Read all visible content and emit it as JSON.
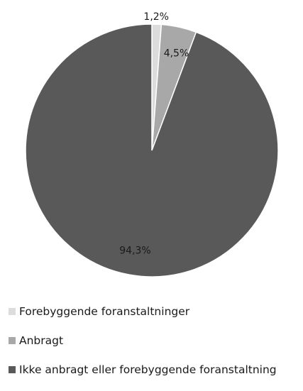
{
  "chart_data": {
    "type": "pie",
    "slices": [
      {
        "label": "Forebyggende foranstaltninger",
        "value": 1.2,
        "value_label": "1,2%",
        "color": "#dcdcdc"
      },
      {
        "label": "Anbragt",
        "value": 4.5,
        "value_label": "4,5%",
        "color": "#a8a8a8"
      },
      {
        "label": "Ikke anbragt eller forebyggende foranstaltning",
        "value": 94.3,
        "value_label": "94,3%",
        "color": "#595959"
      }
    ],
    "legend_position": "bottom-left",
    "start_angle": "12 o'clock",
    "direction": "clockwise"
  }
}
